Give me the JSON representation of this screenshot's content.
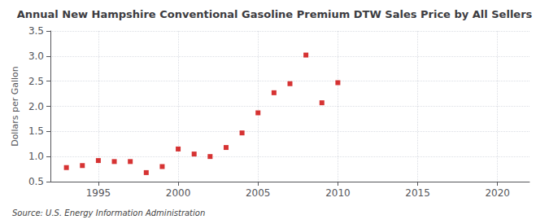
{
  "chart_data": {
    "type": "scatter",
    "title": "Annual New Hampshire Conventional Gasoline Premium DTW Sales Price by All Sellers",
    "ylabel": "Dollars per Gallon",
    "source": "Source: U.S. Energy Information Administration",
    "x": [
      1993,
      1994,
      1995,
      1996,
      1997,
      1998,
      1999,
      2000,
      2001,
      2002,
      2003,
      2004,
      2005,
      2006,
      2007,
      2008,
      2009,
      2010
    ],
    "values": [
      0.78,
      0.82,
      0.92,
      0.9,
      0.9,
      0.68,
      0.8,
      1.15,
      1.05,
      1.0,
      1.18,
      1.47,
      1.87,
      2.27,
      2.45,
      3.02,
      2.07,
      2.47
    ],
    "color": "#cc0000",
    "marker": "square",
    "xlim": [
      1992,
      2022
    ],
    "xticks": [
      1995,
      2000,
      2005,
      2010,
      2015,
      2020
    ],
    "ylim": [
      0.5,
      3.5
    ],
    "yticks": [
      0.5,
      {
        "value": 1.0,
        "label": "1.0"
      },
      1.5,
      {
        "value": 2.0,
        "label": "2.0"
      },
      2.5,
      {
        "value": 3.0,
        "label": "3.0"
      },
      3.5
    ],
    "grid": true
  }
}
